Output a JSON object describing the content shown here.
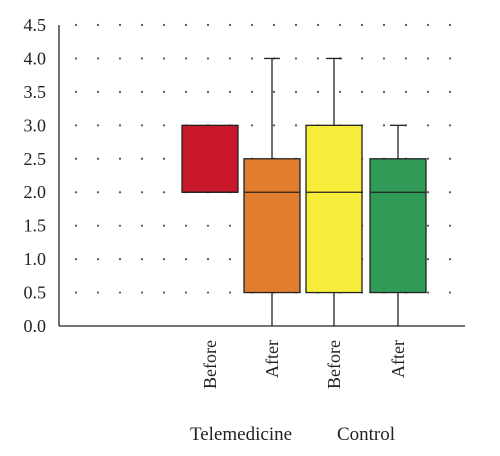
{
  "chart_data": {
    "type": "box",
    "title": "",
    "xlabel": "",
    "ylabel": "",
    "ylim": [
      0,
      4.5
    ],
    "yticks": [
      "0.0",
      "0.5",
      "1.0",
      "1.5",
      "2.0",
      "2.5",
      "3.0",
      "3.5",
      "4.0",
      "4.5"
    ],
    "grid": true,
    "categories": [
      "Before",
      "After",
      "Before",
      "After"
    ],
    "groups": [
      {
        "label": "Telemedicine",
        "categories": [
          0,
          1
        ]
      },
      {
        "label": "Control",
        "categories": [
          2,
          3
        ]
      }
    ],
    "boxes": [
      {
        "category": "Before",
        "group": "Telemedicine",
        "min": 2.0,
        "q1": 2.0,
        "median": 2.0,
        "q3": 3.0,
        "max": 3.0,
        "color": "#c8182a"
      },
      {
        "category": "After",
        "group": "Telemedicine",
        "min": 0.0,
        "q1": 0.5,
        "median": 2.0,
        "q3": 2.5,
        "max": 4.0,
        "color": "#e07d2e"
      },
      {
        "category": "Before",
        "group": "Control",
        "min": 0.0,
        "q1": 0.5,
        "median": 2.0,
        "q3": 3.0,
        "max": 4.0,
        "color": "#f7ec3a"
      },
      {
        "category": "After",
        "group": "Control",
        "min": 0.0,
        "q1": 0.5,
        "median": 2.0,
        "q3": 2.5,
        "max": 3.0,
        "color": "#2f9b57"
      }
    ]
  }
}
